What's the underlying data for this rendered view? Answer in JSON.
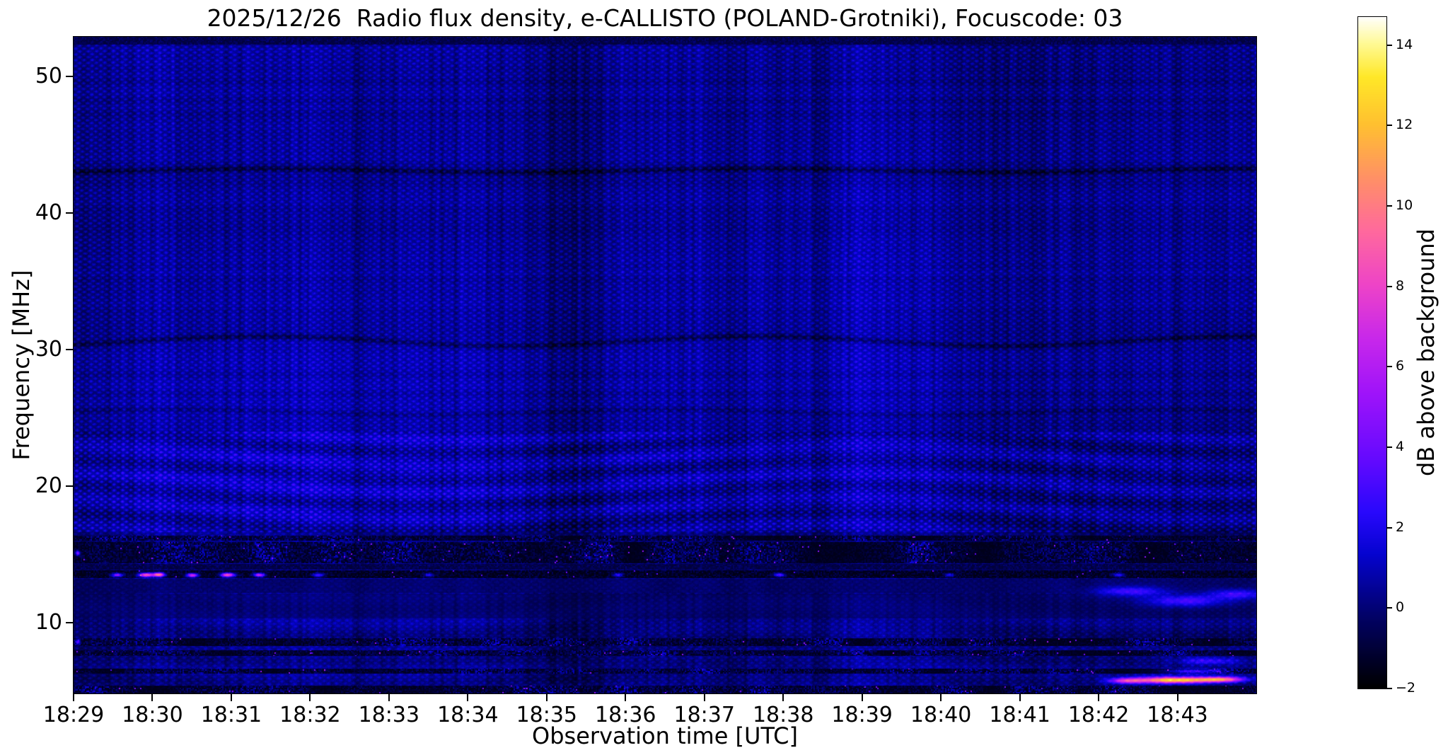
{
  "meta": {
    "date": "2025/12/26",
    "instrument": "e-CALLISTO",
    "station": "POLAND-Grotniki",
    "focuscode": "03"
  },
  "chart_data": {
    "type": "heatmap",
    "title": "2025/12/26  Radio flux density, e-CALLISTO (POLAND-Grotniki), Focuscode: 03",
    "xlabel": "Observation time [UTC]",
    "ylabel": "Frequency [MHz]",
    "colorbar_label": "dB above background",
    "x_tick_labels": [
      "18:29",
      "18:30",
      "18:31",
      "18:32",
      "18:33",
      "18:34",
      "18:35",
      "18:36",
      "18:37",
      "18:38",
      "18:39",
      "18:40",
      "18:41",
      "18:42",
      "18:43"
    ],
    "x_start": "18:29",
    "x_end": "18:44",
    "duration_min": 15,
    "y_ticks": [
      {
        "value": 50,
        "label": "50"
      },
      {
        "value": 40,
        "label": "40"
      },
      {
        "value": 30,
        "label": "30"
      },
      {
        "value": 20,
        "label": "20"
      },
      {
        "value": 10,
        "label": "10"
      }
    ],
    "freq_range_mhz": [
      4.8,
      52.9
    ],
    "value_range_db": [
      -2,
      14.7
    ],
    "colorbar_ticks": [
      {
        "value": 14,
        "label": "14"
      },
      {
        "value": 12,
        "label": "12"
      },
      {
        "value": 10,
        "label": "10"
      },
      {
        "value": 8,
        "label": "8"
      },
      {
        "value": 6,
        "label": "6"
      },
      {
        "value": 4,
        "label": "4"
      },
      {
        "value": 2,
        "label": "2"
      },
      {
        "value": 0,
        "label": "0"
      },
      {
        "value": -2,
        "label": "−2"
      }
    ],
    "colormap_stops": [
      [
        0.0,
        0,
        0,
        0
      ],
      [
        0.1,
        2,
        2,
        96
      ],
      [
        0.2,
        6,
        4,
        208
      ],
      [
        0.26,
        40,
        8,
        252
      ],
      [
        0.34,
        100,
        10,
        255
      ],
      [
        0.44,
        160,
        20,
        250
      ],
      [
        0.52,
        200,
        40,
        235
      ],
      [
        0.6,
        238,
        68,
        200
      ],
      [
        0.68,
        255,
        105,
        158
      ],
      [
        0.76,
        255,
        145,
        102
      ],
      [
        0.84,
        255,
        193,
        48
      ],
      [
        0.91,
        255,
        232,
        40
      ],
      [
        0.96,
        255,
        250,
        150
      ],
      [
        1.0,
        255,
        255,
        255
      ]
    ],
    "background_level_db": 0.5,
    "rfi_bands": [
      {
        "f0": 52.35,
        "f1": 52.9,
        "style": "dark"
      },
      {
        "f0": 16.0,
        "f1": 16.35,
        "style": "speckle"
      },
      {
        "f0": 14.35,
        "f1": 15.9,
        "style": "speckle"
      },
      {
        "f0": 13.85,
        "f1": 14.3,
        "style": "dark"
      },
      {
        "f0": 13.25,
        "f1": 13.8,
        "style": "hot"
      },
      {
        "f0": 12.15,
        "f1": 13.2,
        "style": "dim"
      },
      {
        "f0": 10.3,
        "f1": 12.1,
        "style": "dim2"
      },
      {
        "f0": 8.25,
        "f1": 8.85,
        "style": "speckle"
      },
      {
        "f0": 7.55,
        "f1": 7.95,
        "style": "speckle"
      },
      {
        "f0": 6.25,
        "f1": 6.6,
        "style": "speckle"
      },
      {
        "f0": 4.8,
        "f1": 5.35,
        "style": "speckle"
      }
    ],
    "dark_lines": [
      {
        "f_mhz": 43.1,
        "depth_db": 1.3,
        "wobble_mhz": 0.12
      },
      {
        "f_mhz": 30.6,
        "depth_db": 1.1,
        "wobble_mhz": 0.35
      },
      {
        "f_mhz": 25.4,
        "depth_db": 0.6,
        "wobble_mhz": 0.2
      }
    ],
    "bright_features": [
      {
        "t_min": 0.55,
        "f_mhz": 13.5,
        "peak_db": 6.0,
        "sigma_t_min": 0.05,
        "sigma_f_mhz": 0.1
      },
      {
        "t_min": 0.92,
        "f_mhz": 13.5,
        "peak_db": 10.0,
        "sigma_t_min": 0.07,
        "sigma_f_mhz": 0.11
      },
      {
        "t_min": 1.08,
        "f_mhz": 13.52,
        "peak_db": 11.0,
        "sigma_t_min": 0.05,
        "sigma_f_mhz": 0.11
      },
      {
        "t_min": 1.5,
        "f_mhz": 13.48,
        "peak_db": 8.5,
        "sigma_t_min": 0.05,
        "sigma_f_mhz": 0.1
      },
      {
        "t_min": 1.95,
        "f_mhz": 13.5,
        "peak_db": 10.0,
        "sigma_t_min": 0.06,
        "sigma_f_mhz": 0.11
      },
      {
        "t_min": 2.35,
        "f_mhz": 13.5,
        "peak_db": 7.5,
        "sigma_t_min": 0.05,
        "sigma_f_mhz": 0.1
      },
      {
        "t_min": 3.1,
        "f_mhz": 13.5,
        "peak_db": 4.5,
        "sigma_t_min": 0.05,
        "sigma_f_mhz": 0.1
      },
      {
        "t_min": 4.5,
        "f_mhz": 13.5,
        "peak_db": 3.5,
        "sigma_t_min": 0.04,
        "sigma_f_mhz": 0.1
      },
      {
        "t_min": 6.9,
        "f_mhz": 13.5,
        "peak_db": 4.0,
        "sigma_t_min": 0.04,
        "sigma_f_mhz": 0.1
      },
      {
        "t_min": 8.95,
        "f_mhz": 13.5,
        "peak_db": 4.5,
        "sigma_t_min": 0.05,
        "sigma_f_mhz": 0.1
      },
      {
        "t_min": 11.1,
        "f_mhz": 13.5,
        "peak_db": 3.5,
        "sigma_t_min": 0.04,
        "sigma_f_mhz": 0.1
      },
      {
        "t_min": 13.25,
        "f_mhz": 13.5,
        "peak_db": 4.0,
        "sigma_t_min": 0.05,
        "sigma_f_mhz": 0.1
      },
      {
        "t_min": 13.95,
        "f_mhz": 5.8,
        "peak_db": 13.0,
        "sigma_t_min": 0.33,
        "sigma_f_mhz": 0.16
      },
      {
        "t_min": 14.55,
        "f_mhz": 5.85,
        "peak_db": 9.5,
        "sigma_t_min": 0.2,
        "sigma_f_mhz": 0.14
      },
      {
        "t_min": 13.35,
        "f_mhz": 5.75,
        "peak_db": 6.5,
        "sigma_t_min": 0.15,
        "sigma_f_mhz": 0.14
      },
      {
        "t_min": 14.2,
        "f_mhz": 6.45,
        "peak_db": 4.0,
        "sigma_t_min": 0.25,
        "sigma_f_mhz": 0.12
      },
      {
        "t_min": 13.4,
        "f_mhz": 12.3,
        "peak_db": 3.0,
        "sigma_t_min": 0.3,
        "sigma_f_mhz": 0.25
      },
      {
        "t_min": 14.1,
        "f_mhz": 11.6,
        "peak_db": 3.2,
        "sigma_t_min": 0.35,
        "sigma_f_mhz": 0.3
      },
      {
        "t_min": 14.75,
        "f_mhz": 12.1,
        "peak_db": 3.0,
        "sigma_t_min": 0.25,
        "sigma_f_mhz": 0.25
      },
      {
        "t_min": 14.4,
        "f_mhz": 7.2,
        "peak_db": 3.0,
        "sigma_t_min": 0.3,
        "sigma_f_mhz": 0.2
      },
      {
        "t_min": 0.05,
        "f_mhz": 15.1,
        "peak_db": 6.0,
        "sigma_t_min": 0.02,
        "sigma_f_mhz": 0.12
      },
      {
        "t_min": 0.05,
        "f_mhz": 8.6,
        "peak_db": 5.0,
        "sigma_t_min": 0.02,
        "sigma_f_mhz": 0.12
      }
    ]
  }
}
